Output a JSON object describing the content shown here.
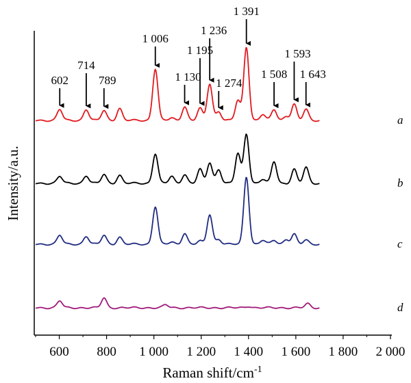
{
  "chart_data": {
    "type": "line",
    "xlabel": "Raman shift/cm",
    "xlabel_sup": "-1",
    "ylabel": "Intensity/a.u.",
    "xlim": [
      500,
      2000
    ],
    "x_ticks": [
      {
        "value": 600,
        "label": "600"
      },
      {
        "value": 800,
        "label": "800"
      },
      {
        "value": 1000,
        "label": "1 000"
      },
      {
        "value": 1200,
        "label": "1 200"
      },
      {
        "value": 1400,
        "label": "1 400"
      },
      {
        "value": 1600,
        "label": "1 600"
      },
      {
        "value": 1800,
        "label": "1 800"
      },
      {
        "value": 2000,
        "label": "2 000"
      }
    ],
    "y_ticks": false,
    "grid": false,
    "series": [
      {
        "name": "a",
        "color": "#e0191e",
        "peaks": [
          [
            602,
            0.55
          ],
          [
            714,
            0.55
          ],
          [
            789,
            0.5
          ],
          [
            855,
            0.6
          ],
          [
            1006,
            2.6
          ],
          [
            1075,
            0.12
          ],
          [
            1130,
            0.7
          ],
          [
            1195,
            0.6
          ],
          [
            1236,
            1.85
          ],
          [
            1274,
            0.45
          ],
          [
            1355,
            1.0
          ],
          [
            1391,
            3.7
          ],
          [
            1460,
            0.3
          ],
          [
            1508,
            0.55
          ],
          [
            1560,
            0.22
          ],
          [
            1593,
            0.8
          ],
          [
            1643,
            0.55
          ]
        ],
        "peak_labels": [
          {
            "x": 602,
            "text": "602"
          },
          {
            "x": 714,
            "text": "714"
          },
          {
            "x": 789,
            "text": "789"
          },
          {
            "x": 1006,
            "text": "1 006"
          },
          {
            "x": 1130,
            "text": "1 130"
          },
          {
            "x": 1195,
            "text": "1 195"
          },
          {
            "x": 1236,
            "text": "1 236"
          },
          {
            "x": 1274,
            "text": "1 274"
          },
          {
            "x": 1391,
            "text": "1 391"
          },
          {
            "x": 1508,
            "text": "1 508"
          },
          {
            "x": 1593,
            "text": "1 593"
          },
          {
            "x": 1643,
            "text": "1 643"
          }
        ]
      },
      {
        "name": "b",
        "color": "#000000",
        "peaks": [
          [
            602,
            0.35
          ],
          [
            714,
            0.38
          ],
          [
            789,
            0.45
          ],
          [
            855,
            0.4
          ],
          [
            1006,
            1.5
          ],
          [
            1075,
            0.35
          ],
          [
            1130,
            0.45
          ],
          [
            1195,
            0.7
          ],
          [
            1236,
            1.05
          ],
          [
            1274,
            0.7
          ],
          [
            1355,
            1.5
          ],
          [
            1391,
            2.5
          ],
          [
            1460,
            0.2
          ],
          [
            1508,
            1.1
          ],
          [
            1593,
            0.7
          ],
          [
            1643,
            0.8
          ]
        ]
      },
      {
        "name": "c",
        "color": "#1f2b80",
        "peaks": [
          [
            602,
            0.45
          ],
          [
            714,
            0.4
          ],
          [
            789,
            0.45
          ],
          [
            855,
            0.35
          ],
          [
            1006,
            1.9
          ],
          [
            1075,
            0.1
          ],
          [
            1130,
            0.55
          ],
          [
            1195,
            0.15
          ],
          [
            1236,
            1.5
          ],
          [
            1274,
            0.25
          ],
          [
            1391,
            3.4
          ],
          [
            1460,
            0.2
          ],
          [
            1508,
            0.2
          ],
          [
            1560,
            0.25
          ],
          [
            1593,
            0.5
          ],
          [
            1643,
            0.2
          ]
        ]
      },
      {
        "name": "d",
        "color": "#a0197a",
        "peaks": [
          [
            602,
            0.35
          ],
          [
            789,
            0.5
          ],
          [
            1050,
            0.15
          ],
          [
            1400,
            0.08
          ],
          [
            1650,
            0.2
          ]
        ]
      }
    ]
  }
}
